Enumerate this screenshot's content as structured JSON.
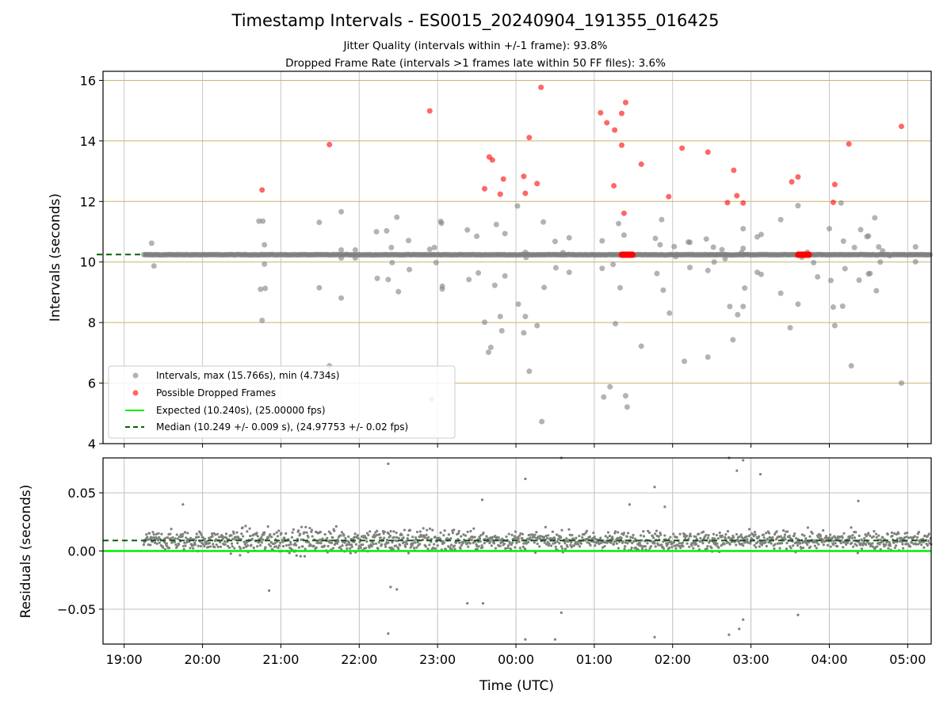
{
  "header": {
    "title": "Timestamp Intervals - ES0015_20240904_191355_016425",
    "subtitle1": "Jitter Quality (intervals within +/-1 frame): 93.8%",
    "subtitle2": "Dropped Frame Rate (intervals >1 frames late within 50 FF files): 3.6%"
  },
  "chart_data": [
    {
      "type": "scatter",
      "panel": "intervals",
      "ylabel": "Intervals (seconds)",
      "ylim": [
        4,
        16.3
      ],
      "yticks": [
        "4",
        "6",
        "8",
        "10",
        "12",
        "14",
        "16"
      ],
      "xlim_hours": [
        18.73,
        29.3
      ],
      "grid": true,
      "legend_position": "lower-left",
      "expected": 10.24,
      "median": 10.249,
      "colors": {
        "intervals": "#808080",
        "dropped": "#ff0000",
        "expected": "#00ee00",
        "median": "#006400",
        "hgrid": "#c8b472"
      },
      "legend": [
        "Intervals, max (15.766s), min (4.734s)",
        "Possible Dropped Frames",
        "Expected (10.240s), (25.00000 fps)",
        "Median (10.249 +/- 0.009 s), (24.97753 +/- 0.02 fps)"
      ],
      "interval_points": [
        [
          19.35,
          10.62
        ],
        [
          19.38,
          9.87
        ],
        [
          20.72,
          11.35
        ],
        [
          20.74,
          9.1
        ],
        [
          20.76,
          8.07
        ],
        [
          20.77,
          11.35
        ],
        [
          20.79,
          10.57
        ],
        [
          20.79,
          9.93
        ],
        [
          20.8,
          9.13
        ],
        [
          21.49,
          11.31
        ],
        [
          21.49,
          9.15
        ],
        [
          21.62,
          6.57
        ],
        [
          21.77,
          11.66
        ],
        [
          21.77,
          10.4
        ],
        [
          21.77,
          8.81
        ],
        [
          21.77,
          10.13
        ],
        [
          21.95,
          10.4
        ],
        [
          21.95,
          10.13
        ],
        [
          22.22,
          11.0
        ],
        [
          22.23,
          9.46
        ],
        [
          22.35,
          11.03
        ],
        [
          22.37,
          9.42
        ],
        [
          22.41,
          10.48
        ],
        [
          22.42,
          9.98
        ],
        [
          22.48,
          11.48
        ],
        [
          22.5,
          9.02
        ],
        [
          22.63,
          10.71
        ],
        [
          22.64,
          9.75
        ],
        [
          22.9,
          10.42
        ],
        [
          22.92,
          5.47
        ],
        [
          22.96,
          10.48
        ],
        [
          22.98,
          9.98
        ],
        [
          23.04,
          11.34
        ],
        [
          23.06,
          9.11
        ],
        [
          23.05,
          11.28
        ],
        [
          23.06,
          9.2
        ],
        [
          23.38,
          11.06
        ],
        [
          23.4,
          9.42
        ],
        [
          23.5,
          10.85
        ],
        [
          23.52,
          9.64
        ],
        [
          23.6,
          8.01
        ],
        [
          23.65,
          7.02
        ],
        [
          23.68,
          7.18
        ],
        [
          23.73,
          9.23
        ],
        [
          23.75,
          11.24
        ],
        [
          23.8,
          8.2
        ],
        [
          23.82,
          7.73
        ],
        [
          23.86,
          9.54
        ],
        [
          23.86,
          10.94
        ],
        [
          24.02,
          11.85
        ],
        [
          24.03,
          8.61
        ],
        [
          24.1,
          7.66
        ],
        [
          24.12,
          8.2
        ],
        [
          24.12,
          10.32
        ],
        [
          24.13,
          10.15
        ],
        [
          24.17,
          6.39
        ],
        [
          24.27,
          7.9
        ],
        [
          24.33,
          4.73
        ],
        [
          24.35,
          11.32
        ],
        [
          24.36,
          9.16
        ],
        [
          24.5,
          10.68
        ],
        [
          24.51,
          9.81
        ],
        [
          24.6,
          10.31
        ],
        [
          24.68,
          10.8
        ],
        [
          24.68,
          9.66
        ],
        [
          25.1,
          10.7
        ],
        [
          25.1,
          9.79
        ],
        [
          25.12,
          5.54
        ],
        [
          25.2,
          5.88
        ],
        [
          25.24,
          9.92
        ],
        [
          25.27,
          7.96
        ],
        [
          25.31,
          11.27
        ],
        [
          25.33,
          9.15
        ],
        [
          25.38,
          10.89
        ],
        [
          25.4,
          5.58
        ],
        [
          25.42,
          5.21
        ],
        [
          25.6,
          7.22
        ],
        [
          25.78,
          10.78
        ],
        [
          25.8,
          9.62
        ],
        [
          25.84,
          10.57
        ],
        [
          25.86,
          11.4
        ],
        [
          25.88,
          9.07
        ],
        [
          25.96,
          8.31
        ],
        [
          26.02,
          10.51
        ],
        [
          26.04,
          10.18
        ],
        [
          26.15,
          6.72
        ],
        [
          26.2,
          10.66
        ],
        [
          26.22,
          9.82
        ],
        [
          26.22,
          10.65
        ],
        [
          26.43,
          10.76
        ],
        [
          26.45,
          6.86
        ],
        [
          26.45,
          9.72
        ],
        [
          26.52,
          10.49
        ],
        [
          26.53,
          10.0
        ],
        [
          26.63,
          10.41
        ],
        [
          26.67,
          10.11
        ],
        [
          26.73,
          8.53
        ],
        [
          26.77,
          7.43
        ],
        [
          26.83,
          8.26
        ],
        [
          26.88,
          10.31
        ],
        [
          26.9,
          10.45
        ],
        [
          26.9,
          8.53
        ],
        [
          26.9,
          11.1
        ],
        [
          26.92,
          9.14
        ],
        [
          27.08,
          10.83
        ],
        [
          27.08,
          9.66
        ],
        [
          27.13,
          9.59
        ],
        [
          27.13,
          10.91
        ],
        [
          27.38,
          11.4
        ],
        [
          27.38,
          8.97
        ],
        [
          27.5,
          7.83
        ],
        [
          27.6,
          11.86
        ],
        [
          27.6,
          8.61
        ],
        [
          27.65,
          10.16
        ],
        [
          27.72,
          10.32
        ],
        [
          27.8,
          9.98
        ],
        [
          27.85,
          9.51
        ],
        [
          28.0,
          11.1
        ],
        [
          28.02,
          9.39
        ],
        [
          28.05,
          8.51
        ],
        [
          28.07,
          7.9
        ],
        [
          28.15,
          11.95
        ],
        [
          28.17,
          8.54
        ],
        [
          28.18,
          10.69
        ],
        [
          28.2,
          9.78
        ],
        [
          28.28,
          6.57
        ],
        [
          28.32,
          10.48
        ],
        [
          28.38,
          9.4
        ],
        [
          28.4,
          11.07
        ],
        [
          28.48,
          10.84
        ],
        [
          28.5,
          10.86
        ],
        [
          28.5,
          9.61
        ],
        [
          28.52,
          9.62
        ],
        [
          28.58,
          11.46
        ],
        [
          28.6,
          9.05
        ],
        [
          28.63,
          10.5
        ],
        [
          28.68,
          10.37
        ],
        [
          28.65,
          10.0
        ],
        [
          28.77,
          10.21
        ],
        [
          28.92,
          6.0
        ],
        [
          29.1,
          10.5
        ],
        [
          29.1,
          10.01
        ]
      ],
      "dropped_points": [
        [
          20.76,
          12.38
        ],
        [
          21.62,
          13.88
        ],
        [
          22.9,
          14.99
        ],
        [
          23.6,
          12.42
        ],
        [
          23.66,
          13.47
        ],
        [
          23.7,
          13.37
        ],
        [
          23.8,
          12.24
        ],
        [
          23.84,
          12.74
        ],
        [
          24.1,
          12.83
        ],
        [
          24.12,
          12.27
        ],
        [
          24.17,
          14.11
        ],
        [
          24.27,
          12.59
        ],
        [
          24.32,
          15.77
        ],
        [
          25.08,
          14.93
        ],
        [
          25.16,
          14.6
        ],
        [
          25.25,
          12.52
        ],
        [
          25.26,
          14.36
        ],
        [
          25.35,
          13.86
        ],
        [
          25.35,
          14.91
        ],
        [
          25.4,
          15.27
        ],
        [
          25.38,
          11.61
        ],
        [
          25.6,
          13.23
        ],
        [
          25.95,
          12.16
        ],
        [
          26.12,
          13.76
        ],
        [
          26.45,
          13.63
        ],
        [
          26.7,
          11.96
        ],
        [
          26.78,
          13.03
        ],
        [
          26.82,
          12.19
        ],
        [
          26.9,
          11.95
        ],
        [
          27.52,
          12.65
        ],
        [
          27.6,
          12.81
        ],
        [
          28.07,
          12.56
        ],
        [
          28.05,
          11.97
        ],
        [
          28.25,
          13.9
        ],
        [
          28.92,
          14.48
        ]
      ],
      "dropped_cluster": [
        [
          25.35,
          25.5,
          10.24
        ],
        [
          27.6,
          27.75,
          10.24
        ]
      ]
    },
    {
      "type": "scatter",
      "panel": "residuals",
      "xlabel": "Time (UTC)",
      "ylabel": "Residuals (seconds)",
      "ylim": [
        -0.08,
        0.08
      ],
      "yticks": [
        "−0.05",
        "0.00",
        "0.05"
      ],
      "xticks": [
        "19:00",
        "20:00",
        "21:00",
        "22:00",
        "23:00",
        "00:00",
        "01:00",
        "02:00",
        "03:00",
        "04:00",
        "05:00"
      ],
      "expected_residual": 0.0,
      "median_residual": 0.009,
      "colors": {
        "points": "#808080",
        "expected": "#00ee00",
        "median": "#006400",
        "grid": "#bfbfbf"
      },
      "outliers": [
        [
          19.75,
          0.04
        ],
        [
          20.85,
          -0.034
        ],
        [
          22.37,
          0.075
        ],
        [
          22.37,
          -0.071
        ],
        [
          22.4,
          -0.031
        ],
        [
          22.48,
          -0.033
        ],
        [
          23.38,
          -0.045
        ],
        [
          23.58,
          -0.045
        ],
        [
          23.57,
          0.044
        ],
        [
          24.12,
          0.062
        ],
        [
          24.12,
          -0.076
        ],
        [
          24.58,
          0.08
        ],
        [
          24.58,
          -0.053
        ],
        [
          24.5,
          -0.076
        ],
        [
          25.45,
          0.04
        ],
        [
          25.77,
          0.055
        ],
        [
          25.77,
          -0.074
        ],
        [
          25.9,
          0.038
        ],
        [
          26.72,
          0.08
        ],
        [
          26.72,
          -0.072
        ],
        [
          26.82,
          0.069
        ],
        [
          26.85,
          -0.067
        ],
        [
          26.9,
          0.078
        ],
        [
          26.9,
          -0.059
        ],
        [
          27.12,
          0.066
        ],
        [
          27.6,
          -0.055
        ],
        [
          28.37,
          0.043
        ]
      ]
    }
  ]
}
